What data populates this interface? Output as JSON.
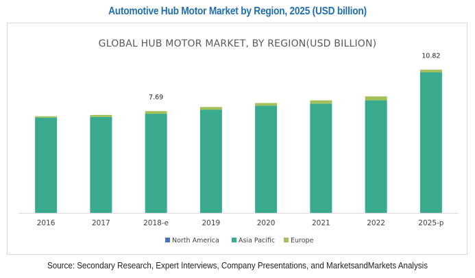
{
  "header": {
    "title": "Automotive Hub Motor Market by Region, 2025 (USD billion)"
  },
  "footer": {
    "source": "Source: Secondary Research, Expert Interviews, Company Presentations, and MarketsandMarkets Analysis"
  },
  "chart_data": {
    "type": "bar",
    "stacked": true,
    "title": "GLOBAL HUB MOTOR MARKET, BY REGION(USD BILLION)",
    "xlabel": "",
    "ylabel": "",
    "categories": [
      "2016",
      "2017",
      "2018-e",
      "2019",
      "2020",
      "2021",
      "2022",
      "2025-p"
    ],
    "series": [
      {
        "name": "North America",
        "color": "#4472c4",
        "values": [
          0.01,
          0.01,
          0.01,
          0.01,
          0.01,
          0.01,
          0.01,
          0.01
        ]
      },
      {
        "name": "Asia Pacific",
        "color": "#3aaa8f",
        "values": [
          7.19,
          7.24,
          7.48,
          7.79,
          8.09,
          8.24,
          8.49,
          10.61
        ]
      },
      {
        "name": "Europe",
        "color": "#a3c15a",
        "values": [
          0.1,
          0.15,
          0.2,
          0.2,
          0.2,
          0.25,
          0.3,
          0.2
        ]
      }
    ],
    "data_labels": [
      {
        "category": "2018-e",
        "text": "7.69"
      },
      {
        "category": "2025-p",
        "text": "10.82"
      }
    ],
    "ylim": [
      0,
      12.2
    ],
    "grid": false,
    "y_axis_visible": false,
    "legend": {
      "position": "bottom",
      "entries": [
        "North America",
        "Asia Pacific",
        "Europe"
      ]
    }
  }
}
